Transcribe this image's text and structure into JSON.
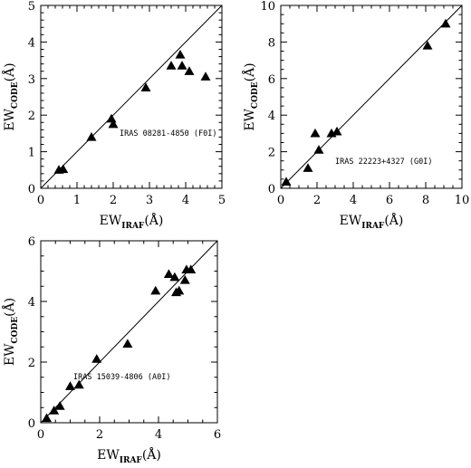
{
  "chart_data": [
    {
      "type": "scatter",
      "annotation": "IRAS 08281-4850 (F0I)",
      "xlabel": "EW",
      "xlabel_sub": "IRAF",
      "xlabel_unit": "(Å)",
      "ylabel": "EW",
      "ylabel_sub": "CODE",
      "ylabel_unit": "(Å)",
      "xlim": [
        0,
        5
      ],
      "ylim": [
        0,
        5
      ],
      "xticks": [
        "0",
        "1",
        "2",
        "3",
        "4",
        "5"
      ],
      "yticks": [
        "0",
        "1",
        "2",
        "3",
        "4",
        "5"
      ],
      "reference_line": "y = x",
      "points": [
        [
          0.5,
          0.5
        ],
        [
          0.62,
          0.52
        ],
        [
          1.4,
          1.4
        ],
        [
          1.95,
          1.9
        ],
        [
          2.0,
          1.75
        ],
        [
          2.9,
          2.75
        ],
        [
          3.6,
          3.35
        ],
        [
          3.85,
          3.65
        ],
        [
          3.9,
          3.35
        ],
        [
          4.1,
          3.2
        ],
        [
          4.55,
          3.05
        ]
      ]
    },
    {
      "type": "scatter",
      "annotation": "IRAS 22223+4327 (G0I)",
      "xlabel": "EW",
      "xlabel_sub": "IRAF",
      "xlabel_unit": "(Å)",
      "ylabel": "EW",
      "ylabel_sub": "CODE",
      "ylabel_unit": "(Å)",
      "xlim": [
        0,
        10
      ],
      "ylim": [
        0,
        10
      ],
      "xticks": [
        "0",
        "2",
        "4",
        "6",
        "8",
        "10"
      ],
      "yticks": [
        "0",
        "2",
        "4",
        "6",
        "8",
        "10"
      ],
      "reference_line": "y = x",
      "points": [
        [
          0.3,
          0.35
        ],
        [
          1.5,
          1.1
        ],
        [
          1.9,
          3.0
        ],
        [
          2.1,
          2.1
        ],
        [
          2.8,
          3.0
        ],
        [
          3.1,
          3.1
        ],
        [
          8.1,
          7.8
        ],
        [
          9.1,
          9.0
        ]
      ]
    },
    {
      "type": "scatter",
      "annotation": "IRAS 15039-4806 (A0I)",
      "xlabel": "EW",
      "xlabel_sub": "IRAF",
      "xlabel_unit": "(Å)",
      "ylabel": "EW",
      "ylabel_sub": "CODE",
      "ylabel_unit": "(Å)",
      "xlim": [
        0,
        6
      ],
      "ylim": [
        0,
        6
      ],
      "xticks": [
        "0",
        "2",
        "4",
        "6"
      ],
      "yticks": [
        "0",
        "2",
        "4",
        "6"
      ],
      "reference_line": "y = x",
      "points": [
        [
          0.2,
          0.15
        ],
        [
          0.45,
          0.4
        ],
        [
          0.65,
          0.55
        ],
        [
          1.0,
          1.2
        ],
        [
          1.3,
          1.25
        ],
        [
          1.9,
          2.1
        ],
        [
          2.95,
          2.6
        ],
        [
          3.9,
          4.35
        ],
        [
          4.35,
          4.9
        ],
        [
          4.55,
          4.8
        ],
        [
          4.6,
          4.3
        ],
        [
          4.7,
          4.35
        ],
        [
          4.9,
          4.7
        ],
        [
          4.95,
          5.05
        ],
        [
          5.1,
          5.05
        ]
      ]
    }
  ]
}
